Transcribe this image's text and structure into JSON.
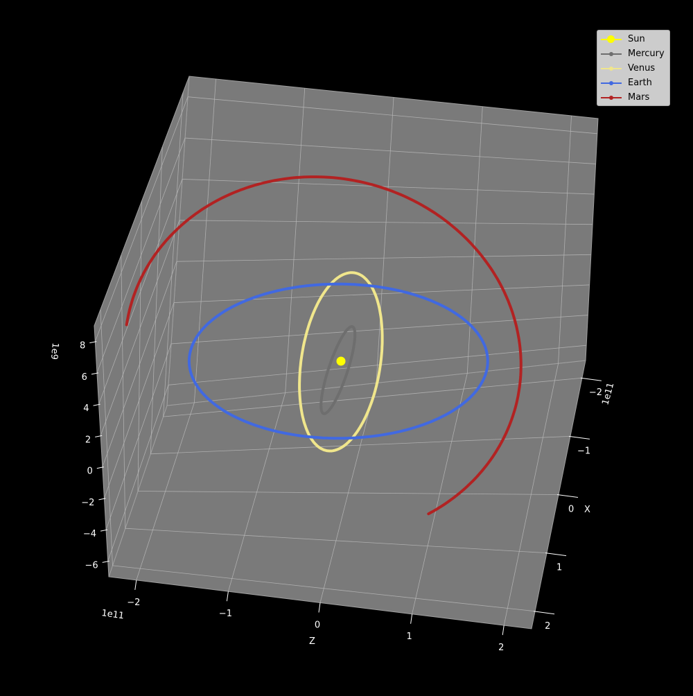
{
  "chart_data": {
    "type": "line",
    "projection": "3d",
    "title": "",
    "colors": {
      "figure_bg": "#000000",
      "pane": "#7a7a7a",
      "grid": "#b8b8b8",
      "legend_bg": "#cccccc"
    },
    "axes": {
      "x": {
        "label": "X",
        "offset_text": "1e11",
        "ticks": [
          "−2",
          "−1",
          "0",
          "1",
          "2"
        ],
        "range": [
          -2.3,
          2.3
        ]
      },
      "y": {
        "label": "Z",
        "offset_text": "1e11",
        "ticks": [
          "−2",
          "−1",
          "0",
          "1",
          "2"
        ],
        "range": [
          -2.3,
          2.3
        ]
      },
      "z": {
        "label": "",
        "offset_text": "1e9",
        "ticks": [
          "−6",
          "−4",
          "−2",
          "0",
          "2",
          "4",
          "6",
          "8"
        ],
        "range": [
          -7,
          9
        ]
      }
    },
    "grid": true,
    "legend_position": "top-right",
    "series": [
      {
        "name": "Sun",
        "color": "#ffff00",
        "marker": "large-dot",
        "semi_major_1e11": 0,
        "eccentricity": 0,
        "inclination_deg": 0,
        "arc_deg": 0
      },
      {
        "name": "Mercury",
        "color": "#6e6e6e",
        "marker": "dot",
        "semi_major_1e11": 0.579,
        "eccentricity": 0.206,
        "inclination_deg": 7.0,
        "arc_deg": 360
      },
      {
        "name": "Venus",
        "color": "#f0e68c",
        "marker": "dot",
        "semi_major_1e11": 1.082,
        "eccentricity": 0.007,
        "inclination_deg": 3.4,
        "arc_deg": 360
      },
      {
        "name": "Earth",
        "color": "#4169e1",
        "marker": "dot",
        "semi_major_1e11": 1.496,
        "eccentricity": 0.017,
        "inclination_deg": 0.0,
        "arc_deg": 360
      },
      {
        "name": "Mars",
        "color": "#b22222",
        "marker": "dot",
        "semi_major_1e11": 2.279,
        "eccentricity": 0.093,
        "inclination_deg": 1.85,
        "arc_deg": 230
      }
    ]
  }
}
